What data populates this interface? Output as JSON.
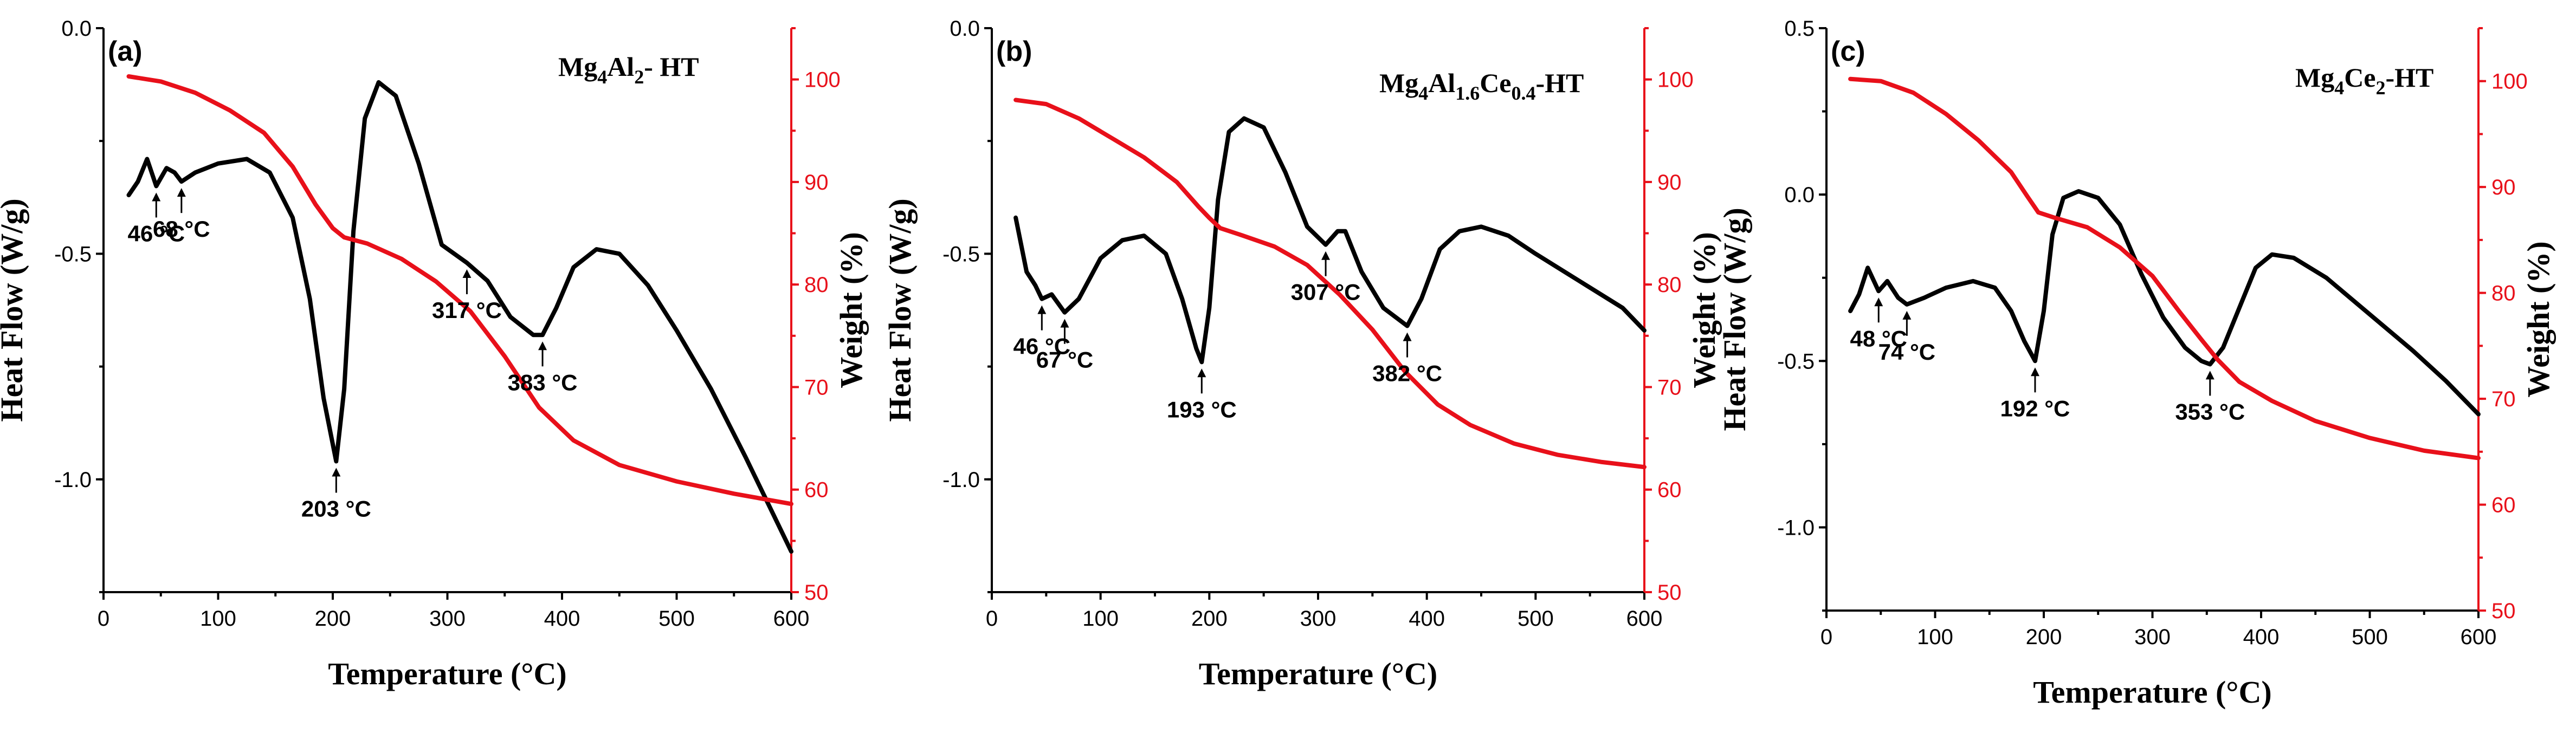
{
  "chart_data": [
    {
      "type": "line",
      "panel_label": "(a)",
      "formula": [
        {
          "t": "Mg"
        },
        {
          "t": "4",
          "sub": true
        },
        {
          "t": "Al"
        },
        {
          "t": "2",
          "sub": true
        },
        {
          "t": "- HT"
        }
      ],
      "xlabel": "Temperature (°C)",
      "ylabel_left": "Heat Flow (W/g)",
      "ylabel_right": "Weight (%)",
      "xlim": [
        0,
        600
      ],
      "ylim_left": [
        -1.25,
        0.0
      ],
      "ylim_right": [
        50,
        105
      ],
      "x_ticks": [
        0,
        100,
        200,
        300,
        400,
        500,
        600
      ],
      "left_ticks": [
        {
          "value": 0.0,
          "label": "0.0"
        },
        {
          "value": -0.5,
          "label": "-0.5"
        },
        {
          "value": -1.0,
          "label": "-1.0"
        }
      ],
      "right_ticks": [
        {
          "value": 50,
          "label": "50"
        },
        {
          "value": 60,
          "label": "60"
        },
        {
          "value": 70,
          "label": "70"
        },
        {
          "value": 80,
          "label": "80"
        },
        {
          "value": 90,
          "label": "90"
        },
        {
          "value": 100,
          "label": "100"
        }
      ],
      "series": [
        {
          "name": "Heat Flow",
          "axis": "left",
          "color": "#000000",
          "points": [
            [
              22,
              -0.37
            ],
            [
              30,
              -0.34
            ],
            [
              38,
              -0.29
            ],
            [
              46,
              -0.35
            ],
            [
              55,
              -0.31
            ],
            [
              62,
              -0.32
            ],
            [
              68,
              -0.34
            ],
            [
              80,
              -0.32
            ],
            [
              100,
              -0.3
            ],
            [
              125,
              -0.29
            ],
            [
              145,
              -0.32
            ],
            [
              165,
              -0.42
            ],
            [
              180,
              -0.6
            ],
            [
              192,
              -0.82
            ],
            [
              203,
              -0.96
            ],
            [
              210,
              -0.8
            ],
            [
              218,
              -0.45
            ],
            [
              228,
              -0.2
            ],
            [
              240,
              -0.12
            ],
            [
              255,
              -0.15
            ],
            [
              275,
              -0.3
            ],
            [
              295,
              -0.48
            ],
            [
              317,
              -0.52
            ],
            [
              335,
              -0.56
            ],
            [
              355,
              -0.64
            ],
            [
              375,
              -0.68
            ],
            [
              383,
              -0.68
            ],
            [
              395,
              -0.62
            ],
            [
              410,
              -0.53
            ],
            [
              430,
              -0.49
            ],
            [
              450,
              -0.5
            ],
            [
              475,
              -0.57
            ],
            [
              500,
              -0.67
            ],
            [
              530,
              -0.8
            ],
            [
              560,
              -0.95
            ],
            [
              600,
              -1.16
            ]
          ]
        },
        {
          "name": "Weight",
          "axis": "right",
          "color": "#e8101a",
          "points": [
            [
              22,
              100.3
            ],
            [
              50,
              99.8
            ],
            [
              80,
              98.7
            ],
            [
              110,
              97.0
            ],
            [
              140,
              94.8
            ],
            [
              165,
              91.5
            ],
            [
              185,
              87.8
            ],
            [
              200,
              85.5
            ],
            [
              210,
              84.6
            ],
            [
              230,
              84.0
            ],
            [
              260,
              82.5
            ],
            [
              290,
              80.3
            ],
            [
              320,
              77.4
            ],
            [
              350,
              73.0
            ],
            [
              380,
              68.0
            ],
            [
              410,
              64.8
            ],
            [
              450,
              62.4
            ],
            [
              500,
              60.8
            ],
            [
              550,
              59.6
            ],
            [
              600,
              58.6
            ]
          ]
        }
      ],
      "annotations": [
        {
          "text": "46 °C",
          "x": 46,
          "y": -0.35
        },
        {
          "text": "68 °C",
          "x": 68,
          "y": -0.34
        },
        {
          "text": "203 °C",
          "x": 203,
          "y": -0.96
        },
        {
          "text": "317 °C",
          "x": 317,
          "y": -0.52
        },
        {
          "text": "383 °C",
          "x": 383,
          "y": -0.68
        }
      ]
    },
    {
      "type": "line",
      "panel_label": "(b)",
      "formula": [
        {
          "t": "Mg"
        },
        {
          "t": "4",
          "sub": true
        },
        {
          "t": "Al"
        },
        {
          "t": "1.6",
          "sub": true
        },
        {
          "t": "Ce"
        },
        {
          "t": "0.4",
          "sub": true
        },
        {
          "t": "-HT"
        }
      ],
      "xlabel": "Temperature (°C)",
      "ylabel_left": "Heat Flow (W/g)",
      "ylabel_right": "Weight (%)",
      "xlim": [
        0,
        600
      ],
      "ylim_left": [
        -1.25,
        0.0
      ],
      "ylim_right": [
        50,
        105
      ],
      "x_ticks": [
        0,
        100,
        200,
        300,
        400,
        500,
        600
      ],
      "left_ticks": [
        {
          "value": 0.0,
          "label": "0.0"
        },
        {
          "value": -0.5,
          "label": "-0.5"
        },
        {
          "value": -1.0,
          "label": "-1.0"
        }
      ],
      "right_ticks": [
        {
          "value": 50,
          "label": "50"
        },
        {
          "value": 60,
          "label": "60"
        },
        {
          "value": 70,
          "label": "70"
        },
        {
          "value": 80,
          "label": "80"
        },
        {
          "value": 90,
          "label": "90"
        },
        {
          "value": 100,
          "label": "100"
        }
      ],
      "series": [
        {
          "name": "Heat Flow",
          "axis": "left",
          "color": "#000000",
          "points": [
            [
              22,
              -0.42
            ],
            [
              32,
              -0.54
            ],
            [
              40,
              -0.57
            ],
            [
              46,
              -0.6
            ],
            [
              55,
              -0.59
            ],
            [
              67,
              -0.63
            ],
            [
              80,
              -0.6
            ],
            [
              100,
              -0.51
            ],
            [
              120,
              -0.47
            ],
            [
              140,
              -0.46
            ],
            [
              160,
              -0.5
            ],
            [
              175,
              -0.6
            ],
            [
              188,
              -0.71
            ],
            [
              193,
              -0.74
            ],
            [
              200,
              -0.62
            ],
            [
              208,
              -0.38
            ],
            [
              218,
              -0.23
            ],
            [
              232,
              -0.2
            ],
            [
              250,
              -0.22
            ],
            [
              270,
              -0.32
            ],
            [
              290,
              -0.44
            ],
            [
              307,
              -0.48
            ],
            [
              318,
              -0.45
            ],
            [
              325,
              -0.45
            ],
            [
              340,
              -0.54
            ],
            [
              360,
              -0.62
            ],
            [
              382,
              -0.66
            ],
            [
              395,
              -0.6
            ],
            [
              412,
              -0.49
            ],
            [
              430,
              -0.45
            ],
            [
              450,
              -0.44
            ],
            [
              475,
              -0.46
            ],
            [
              500,
              -0.5
            ],
            [
              540,
              -0.56
            ],
            [
              580,
              -0.62
            ],
            [
              600,
              -0.67
            ]
          ]
        },
        {
          "name": "Weight",
          "axis": "right",
          "color": "#e8101a",
          "points": [
            [
              22,
              98.0
            ],
            [
              50,
              97.6
            ],
            [
              80,
              96.2
            ],
            [
              110,
              94.3
            ],
            [
              140,
              92.4
            ],
            [
              170,
              90.0
            ],
            [
              190,
              87.6
            ],
            [
              200,
              86.5
            ],
            [
              210,
              85.5
            ],
            [
              230,
              84.8
            ],
            [
              260,
              83.7
            ],
            [
              290,
              81.9
            ],
            [
              320,
              79.0
            ],
            [
              350,
              75.6
            ],
            [
              380,
              71.5
            ],
            [
              410,
              68.3
            ],
            [
              440,
              66.3
            ],
            [
              480,
              64.5
            ],
            [
              520,
              63.4
            ],
            [
              560,
              62.7
            ],
            [
              600,
              62.2
            ]
          ]
        }
      ],
      "annotations": [
        {
          "text": "46 °C",
          "x": 46,
          "y": -0.6
        },
        {
          "text": "67 °C",
          "x": 67,
          "y": -0.63
        },
        {
          "text": "193 °C",
          "x": 193,
          "y": -0.74
        },
        {
          "text": "307 °C",
          "x": 307,
          "y": -0.48
        },
        {
          "text": "382 °C",
          "x": 382,
          "y": -0.66
        }
      ]
    },
    {
      "type": "line",
      "panel_label": "(c)",
      "formula": [
        {
          "t": "Mg"
        },
        {
          "t": "4",
          "sub": true
        },
        {
          "t": "Ce"
        },
        {
          "t": "2",
          "sub": true
        },
        {
          "t": "-HT"
        }
      ],
      "xlabel": "Temperature (°C)",
      "ylabel_left": "Heat Flow (W/g)",
      "ylabel_right": "Weight (%)",
      "xlim": [
        0,
        600
      ],
      "ylim_left": [
        -1.25,
        0.5
      ],
      "ylim_right": [
        50,
        105
      ],
      "x_ticks": [
        0,
        100,
        200,
        300,
        400,
        500,
        600
      ],
      "left_ticks": [
        {
          "value": 0.5,
          "label": "0.5"
        },
        {
          "value": 0.0,
          "label": "0.0"
        },
        {
          "value": -0.5,
          "label": "-0.5"
        },
        {
          "value": -1.0,
          "label": "-1.0"
        }
      ],
      "right_ticks": [
        {
          "value": 50,
          "label": "50"
        },
        {
          "value": 60,
          "label": "60"
        },
        {
          "value": 70,
          "label": "70"
        },
        {
          "value": 80,
          "label": "80"
        },
        {
          "value": 90,
          "label": "90"
        },
        {
          "value": 100,
          "label": "100"
        }
      ],
      "series": [
        {
          "name": "Heat Flow",
          "axis": "left",
          "color": "#000000",
          "points": [
            [
              22,
              -0.35
            ],
            [
              30,
              -0.3
            ],
            [
              38,
              -0.22
            ],
            [
              48,
              -0.29
            ],
            [
              56,
              -0.26
            ],
            [
              66,
              -0.31
            ],
            [
              74,
              -0.33
            ],
            [
              90,
              -0.31
            ],
            [
              110,
              -0.28
            ],
            [
              135,
              -0.26
            ],
            [
              155,
              -0.28
            ],
            [
              170,
              -0.35
            ],
            [
              182,
              -0.44
            ],
            [
              192,
              -0.5
            ],
            [
              200,
              -0.35
            ],
            [
              208,
              -0.12
            ],
            [
              218,
              -0.01
            ],
            [
              232,
              0.01
            ],
            [
              250,
              -0.01
            ],
            [
              270,
              -0.09
            ],
            [
              290,
              -0.24
            ],
            [
              310,
              -0.37
            ],
            [
              330,
              -0.46
            ],
            [
              345,
              -0.5
            ],
            [
              353,
              -0.51
            ],
            [
              365,
              -0.46
            ],
            [
              380,
              -0.34
            ],
            [
              395,
              -0.22
            ],
            [
              410,
              -0.18
            ],
            [
              430,
              -0.19
            ],
            [
              460,
              -0.25
            ],
            [
              500,
              -0.36
            ],
            [
              540,
              -0.47
            ],
            [
              570,
              -0.56
            ],
            [
              600,
              -0.66
            ]
          ]
        },
        {
          "name": "Weight",
          "axis": "right",
          "color": "#e8101a",
          "points": [
            [
              22,
              100.2
            ],
            [
              50,
              100.0
            ],
            [
              80,
              98.9
            ],
            [
              110,
              96.9
            ],
            [
              140,
              94.4
            ],
            [
              170,
              91.4
            ],
            [
              185,
              89.1
            ],
            [
              195,
              87.6
            ],
            [
              210,
              87.1
            ],
            [
              240,
              86.2
            ],
            [
              270,
              84.3
            ],
            [
              300,
              81.6
            ],
            [
              325,
              78.2
            ],
            [
              345,
              75.6
            ],
            [
              360,
              73.7
            ],
            [
              380,
              71.6
            ],
            [
              410,
              69.8
            ],
            [
              450,
              67.9
            ],
            [
              500,
              66.3
            ],
            [
              550,
              65.1
            ],
            [
              600,
              64.4
            ]
          ]
        }
      ],
      "annotations": [
        {
          "text": "48 °C",
          "x": 48,
          "y": -0.29
        },
        {
          "text": "74 °C",
          "x": 74,
          "y": -0.33
        },
        {
          "text": "192 °C",
          "x": 192,
          "y": -0.5
        },
        {
          "text": "353 °C",
          "x": 353,
          "y": -0.51
        }
      ]
    }
  ]
}
